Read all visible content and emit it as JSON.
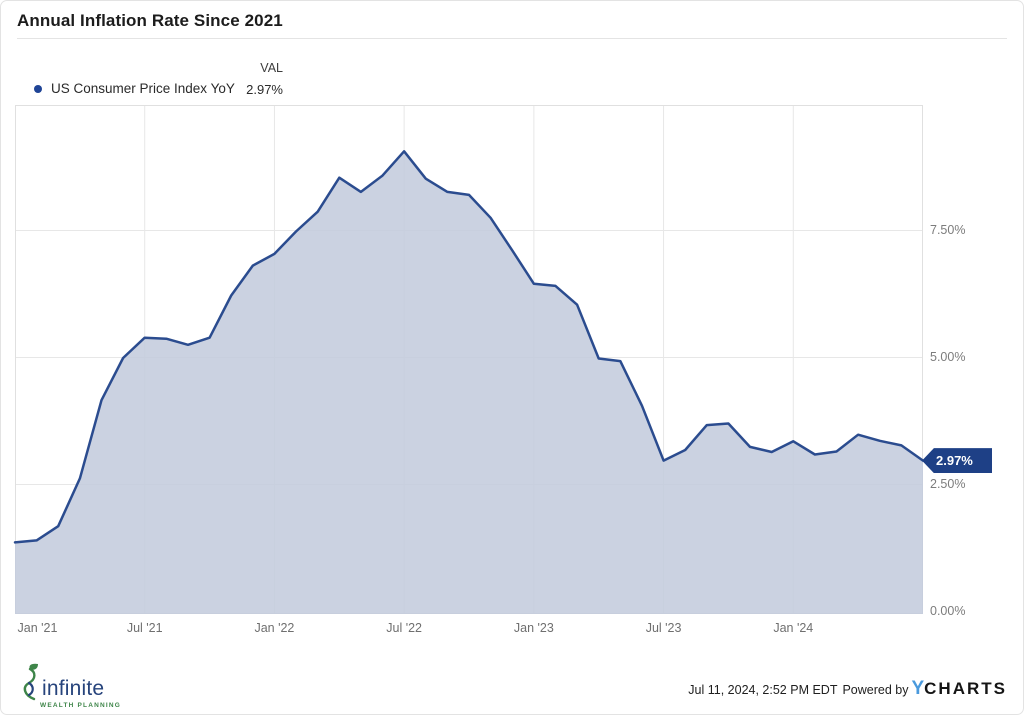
{
  "header": {
    "title": "Annual Inflation Rate Since 2021"
  },
  "legend": {
    "col_header": "VAL",
    "series_label": "US Consumer Price Index YoY",
    "series_value": "2.97%"
  },
  "chart_data": {
    "type": "area",
    "title": "Annual Inflation Rate Since 2021",
    "xlabel": "",
    "ylabel": "",
    "ylim": [
      0,
      10
    ],
    "grid": true,
    "legend_position": "top-left",
    "series": [
      {
        "name": "US Consumer Price Index YoY",
        "x": [
          "Dec '20",
          "Jan '21",
          "Feb '21",
          "Mar '21",
          "Apr '21",
          "May '21",
          "Jun '21",
          "Jul '21",
          "Aug '21",
          "Sep '21",
          "Oct '21",
          "Nov '21",
          "Dec '21",
          "Jan '22",
          "Feb '22",
          "Mar '22",
          "Apr '22",
          "May '22",
          "Jun '22",
          "Jul '22",
          "Aug '22",
          "Sep '22",
          "Oct '22",
          "Nov '22",
          "Dec '22",
          "Jan '23",
          "Feb '23",
          "Mar '23",
          "Apr '23",
          "May '23",
          "Jun '23",
          "Jul '23",
          "Aug '23",
          "Sep '23",
          "Oct '23",
          "Nov '23",
          "Dec '23",
          "Jan '24",
          "Feb '24",
          "Mar '24",
          "Apr '24",
          "May '24",
          "Jun '24"
        ],
        "values": [
          1.36,
          1.4,
          1.68,
          2.62,
          4.16,
          4.99,
          5.39,
          5.37,
          5.25,
          5.39,
          6.22,
          6.81,
          7.04,
          7.48,
          7.87,
          8.54,
          8.26,
          8.58,
          9.06,
          8.52,
          8.26,
          8.2,
          7.75,
          7.11,
          6.45,
          6.41,
          6.04,
          4.98,
          4.93,
          4.05,
          2.97,
          3.18,
          3.67,
          3.7,
          3.24,
          3.14,
          3.35,
          3.09,
          3.15,
          3.48,
          3.36,
          3.27,
          2.97
        ]
      }
    ],
    "yticks": [
      {
        "v": 0,
        "label": "0.00%"
      },
      {
        "v": 2.5,
        "label": "2.50%"
      },
      {
        "v": 5,
        "label": "5.00%"
      },
      {
        "v": 7.5,
        "label": "7.50%"
      }
    ],
    "xticks": [
      {
        "offset": 0,
        "label": "Jan '21"
      },
      {
        "offset": 6,
        "label": "Jul '21"
      },
      {
        "offset": 12,
        "label": "Jan '22"
      },
      {
        "offset": 18,
        "label": "Jul '22"
      },
      {
        "offset": 24,
        "label": "Jan '23"
      },
      {
        "offset": 30,
        "label": "Jul '23"
      },
      {
        "offset": 36,
        "label": "Jan '24"
      }
    ],
    "last_value": 2.97,
    "last_value_label": "2.97%"
  },
  "colors": {
    "line": "#2b4c8f",
    "fill": "#c3cbdd",
    "badge": "#1e4086",
    "legend_dot": "#1f4496",
    "gridline": "#e7e7e7",
    "plot_border": "#e0e0e0",
    "ycharts_blue": "#4a9add",
    "logo_green": "#3e8549",
    "logo_navy": "#27447c"
  },
  "footer": {
    "logo_text": "infinite",
    "logo_subtext": "WEALTH PLANNING",
    "timestamp": "Jul 11, 2024, 2:52 PM EDT",
    "powered_by": "Powered by",
    "brand_y": "Y",
    "brand_rest": "CHARTS"
  }
}
